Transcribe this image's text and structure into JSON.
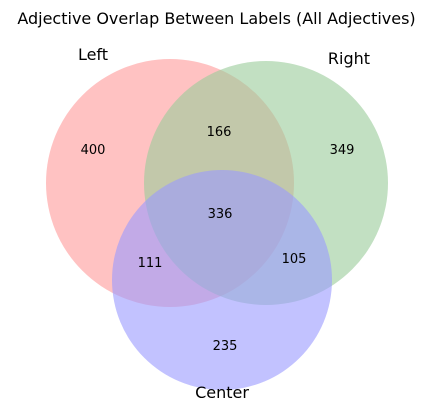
{
  "title": "Adjective Overlap Between Labels (All Adjectives)",
  "sets": [
    {
      "name": "Left",
      "color": "#ff9999"
    },
    {
      "name": "Right",
      "color": "#99cc99"
    },
    {
      "name": "Center",
      "color": "#9999ff"
    }
  ],
  "regions": {
    "left_only": "400",
    "right_only": "349",
    "center_only": "235",
    "left_right": "166",
    "left_center": "111",
    "right_center": "105",
    "all_three": "336"
  }
}
